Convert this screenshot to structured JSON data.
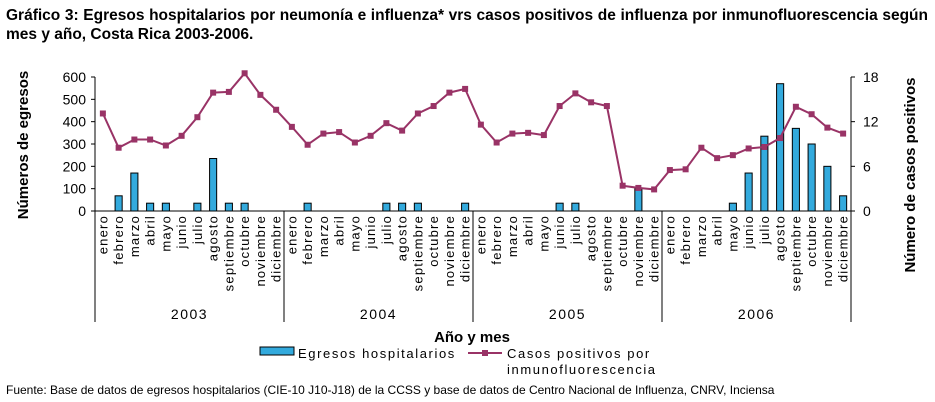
{
  "chart_data": {
    "type": "bar+line",
    "title": "Gráfico 3: Egresos hospitalarios por neumonía e influenza* vrs casos positivos de influenza por inmunofluorescencia según mes y año, Costa Rica 2003-2006.",
    "xlabel": "Año y mes",
    "ylabel_left": "Números de egresos",
    "ylabel_right": "Número de casos positivos",
    "ylim_left": [
      0,
      600
    ],
    "yticks_left": [
      "0",
      "100",
      "200",
      "300",
      "400",
      "500",
      "600"
    ],
    "ylim_right": [
      0,
      18
    ],
    "yticks_right": [
      "0",
      "6",
      "12",
      "18"
    ],
    "grid": false,
    "legend_position": "bottom",
    "years": [
      "2003",
      "2004",
      "2005",
      "2006"
    ],
    "months": [
      "enero",
      "febrero",
      "marzo",
      "abril",
      "mayo",
      "junio",
      "julio",
      "agosto",
      "septiembre",
      "octubre",
      "noviembre",
      "diciembre"
    ],
    "series": [
      {
        "name": "Egresos hospitalarios",
        "type": "bar",
        "axis": "left",
        "color": "#33AADD",
        "values": [
          0,
          68,
          170,
          35,
          35,
          0,
          35,
          235,
          35,
          35,
          0,
          0,
          0,
          35,
          0,
          0,
          0,
          0,
          35,
          35,
          35,
          0,
          0,
          35,
          0,
          0,
          0,
          0,
          0,
          35,
          35,
          0,
          0,
          0,
          100,
          0,
          0,
          0,
          0,
          0,
          35,
          170,
          335,
          570,
          370,
          300,
          200,
          68
        ]
      },
      {
        "name": "Casos positivos por inmunofluorescencia",
        "type": "line",
        "axis": "right",
        "color": "#993366",
        "values": [
          13.1,
          8.5,
          9.6,
          9.6,
          8.8,
          10.1,
          12.6,
          15.9,
          16.0,
          18.5,
          15.6,
          13.6,
          11.3,
          8.9,
          10.4,
          10.6,
          9.2,
          10.1,
          11.8,
          10.8,
          13.1,
          14.1,
          15.9,
          16.4,
          11.6,
          9.2,
          10.4,
          10.5,
          10.2,
          14.1,
          15.8,
          14.6,
          14.1,
          3.4,
          3.1,
          2.9,
          5.5,
          5.6,
          8.5,
          7.1,
          7.5,
          8.4,
          8.6,
          9.8,
          14.0,
          13.0,
          11.2,
          10.4
        ]
      }
    ]
  },
  "legend": {
    "bar_label": "Egresos hospitalarios",
    "line_label_1": "Casos positivos por",
    "line_label_2": "inmunofluorescencia"
  },
  "source": "Fuente: Base de datos de egresos hospitalarios (CIE-10 J10-J18) de la CCSS y base de datos de Centro Nacional de Influenza, CNRV, Inciensa"
}
